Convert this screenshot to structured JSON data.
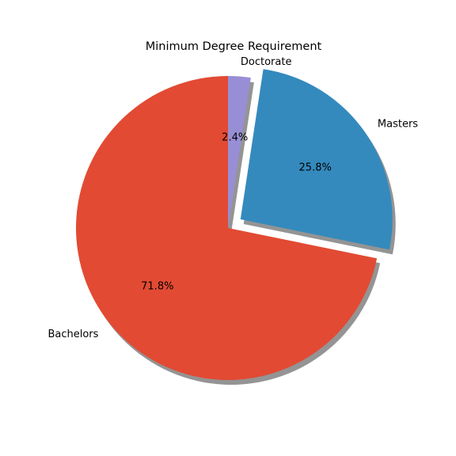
{
  "chart_data": {
    "type": "pie",
    "title": "Minimum Degree Requirement",
    "labels": [
      "Bachelors",
      "Masters",
      "Doctorate"
    ],
    "percent_labels": [
      "71.8%",
      "25.8%",
      "2.4%"
    ],
    "values": [
      71.8,
      25.8,
      2.4
    ],
    "colors": [
      "#E24A33",
      "#348ABD",
      "#988ED5"
    ],
    "explode": [
      0,
      0.1,
      0
    ],
    "start_angle": 90,
    "shadow": true,
    "legend": "none"
  }
}
